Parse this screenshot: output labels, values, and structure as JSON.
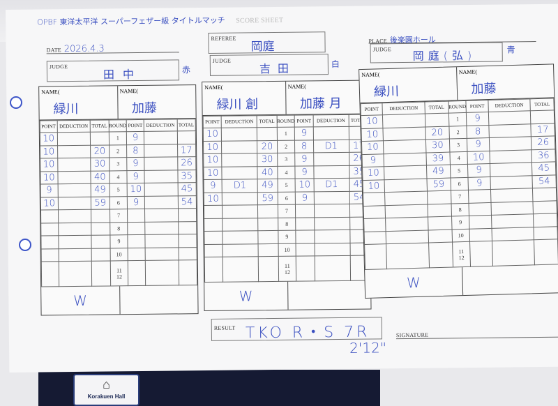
{
  "header": {
    "title": "OPBF 東洋太平洋 スーパーフェザー級 タイトルマッチ",
    "faded_heading": "SCORE SHEET",
    "date_label": "DATE",
    "date": "2026.4.3",
    "referee_label": "REFEREE",
    "referee": "岡庭",
    "place_label": "PLACE",
    "place": "後楽園ホール"
  },
  "judges": [
    {
      "label": "JUDGE",
      "name": "田中",
      "corner": "赤"
    },
    {
      "label": "JUDGE",
      "name": "吉田",
      "corner": "白"
    },
    {
      "label": "JUDGE",
      "name": "岡庭(弘)",
      "corner": "青"
    }
  ],
  "columns": {
    "name": "NAME(",
    "name_close": ")",
    "point": "POINT",
    "deduction": "DEDUCTION",
    "total": "TOTAL",
    "round": "ROUND"
  },
  "rounds": [
    "1",
    "2",
    "3",
    "4",
    "5",
    "6",
    "7",
    "8",
    "9",
    "10",
    "11\n12"
  ],
  "cards": [
    {
      "left": {
        "name": "緑川",
        "points": [
          "10",
          "10",
          "10",
          "10",
          "9",
          "10"
        ],
        "deductions": [
          "",
          "",
          "",
          "",
          "",
          ""
        ],
        "totals": [
          "",
          "20",
          "30",
          "40",
          "49",
          "59"
        ]
      },
      "right": {
        "name": "加藤",
        "points": [
          "9",
          "8",
          "9",
          "9",
          "10",
          "9"
        ],
        "deductions": [
          "",
          "",
          "",
          "",
          "",
          ""
        ],
        "totals": [
          "",
          "17",
          "26",
          "35",
          "45",
          "54"
        ]
      },
      "winner_side": "left",
      "winner": "W"
    },
    {
      "left": {
        "name": "緑川 創",
        "points": [
          "10",
          "10",
          "10",
          "10",
          "9",
          "10"
        ],
        "deductions": [
          "",
          "",
          "",
          "",
          "D1",
          ""
        ],
        "totals": [
          "",
          "20",
          "30",
          "40",
          "49",
          "59"
        ]
      },
      "right": {
        "name": "加藤 月",
        "points": [
          "9",
          "8",
          "9",
          "9",
          "10",
          "9"
        ],
        "deductions": [
          "",
          "D1",
          "",
          "",
          "D1",
          ""
        ],
        "totals": [
          "",
          "17",
          "26",
          "35",
          "45",
          "54"
        ]
      },
      "winner_side": "left",
      "winner": "W"
    },
    {
      "left": {
        "name": "緑川",
        "points": [
          "10",
          "10",
          "10",
          "9",
          "10",
          "10"
        ],
        "deductions": [
          "",
          "",
          "",
          "",
          "",
          ""
        ],
        "totals": [
          "",
          "20",
          "30",
          "39",
          "49",
          "59"
        ]
      },
      "right": {
        "name": "加藤",
        "points": [
          "9",
          "8",
          "9",
          "10",
          "9",
          "9"
        ],
        "deductions": [
          "",
          "",
          "",
          "",
          "",
          ""
        ],
        "totals": [
          "",
          "17",
          "26",
          "36",
          "45",
          "54"
        ]
      },
      "winner_side": "left",
      "winner": "W"
    }
  ],
  "result": {
    "label": "RESULT",
    "value": "TKO R・S 7R",
    "time": "2'12\""
  },
  "signature": {
    "label": "SIGNATURE"
  },
  "venue_logo": {
    "text": "Korakuen Hall"
  },
  "colors": {
    "ink": "#3a4fc0",
    "paper": "#f7f7f8"
  }
}
